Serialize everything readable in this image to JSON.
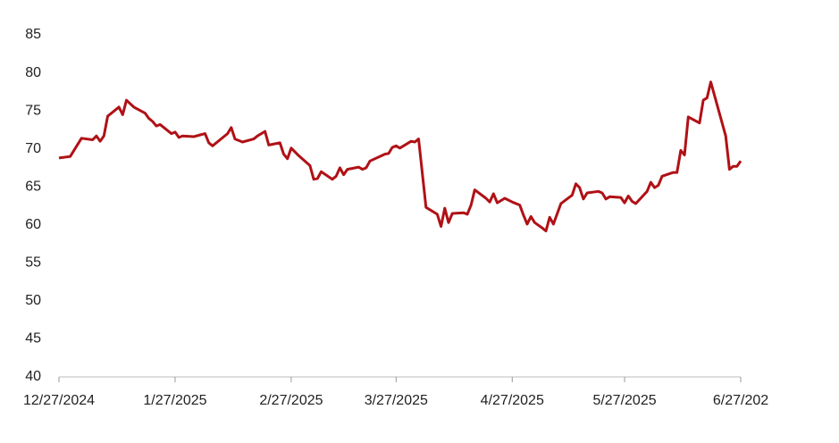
{
  "chart_data": {
    "type": "line",
    "x": [
      "2024-12-27",
      "2024-12-30",
      "2025-01-02",
      "2025-01-05",
      "2025-01-06",
      "2025-01-07",
      "2025-01-08",
      "2025-01-09",
      "2025-01-12",
      "2025-01-13",
      "2025-01-14",
      "2025-01-16",
      "2025-01-19",
      "2025-01-20",
      "2025-01-21",
      "2025-01-22",
      "2025-01-23",
      "2025-01-26",
      "2025-01-27",
      "2025-01-28",
      "2025-01-29",
      "2025-02-01",
      "2025-02-04",
      "2025-02-05",
      "2025-02-06",
      "2025-02-10",
      "2025-02-11",
      "2025-02-12",
      "2025-02-14",
      "2025-02-17",
      "2025-02-18",
      "2025-02-20",
      "2025-02-21",
      "2025-02-24",
      "2025-02-25",
      "2025-02-26",
      "2025-02-27",
      "2025-03-01",
      "2025-03-04",
      "2025-03-05",
      "2025-03-06",
      "2025-03-07",
      "2025-03-10",
      "2025-03-11",
      "2025-03-12",
      "2025-03-13",
      "2025-03-14",
      "2025-03-17",
      "2025-03-18",
      "2025-03-19",
      "2025-03-20",
      "2025-03-24",
      "2025-03-25",
      "2025-03-26",
      "2025-03-27",
      "2025-03-28",
      "2025-03-31",
      "2025-04-01",
      "2025-04-02",
      "2025-04-04",
      "2025-04-07",
      "2025-04-08",
      "2025-04-09",
      "2025-04-10",
      "2025-04-11",
      "2025-04-14",
      "2025-04-15",
      "2025-04-16",
      "2025-04-17",
      "2025-04-20",
      "2025-04-21",
      "2025-04-22",
      "2025-04-23",
      "2025-04-25",
      "2025-04-27",
      "2025-04-29",
      "2025-04-30",
      "2025-05-01",
      "2025-05-02",
      "2025-05-03",
      "2025-05-05",
      "2025-05-06",
      "2025-05-07",
      "2025-05-08",
      "2025-05-10",
      "2025-05-13",
      "2025-05-14",
      "2025-05-15",
      "2025-05-16",
      "2025-05-17",
      "2025-05-20",
      "2025-05-21",
      "2025-05-22",
      "2025-05-23",
      "2025-05-26",
      "2025-05-27",
      "2025-05-28",
      "2025-05-29",
      "2025-05-30",
      "2025-06-02",
      "2025-06-03",
      "2025-06-04",
      "2025-06-05",
      "2025-06-06",
      "2025-06-09",
      "2025-06-10",
      "2025-06-11",
      "2025-06-12",
      "2025-06-13",
      "2025-06-16",
      "2025-06-17",
      "2025-06-18",
      "2025-06-19",
      "2025-06-23",
      "2025-06-24",
      "2025-06-25",
      "2025-06-26",
      "2025-06-27"
    ],
    "series": [
      {
        "color": "#b01116",
        "values": [
          68.8,
          69.0,
          71.4,
          71.2,
          71.7,
          71.0,
          71.7,
          74.3,
          75.5,
          74.5,
          76.4,
          75.5,
          74.7,
          74.0,
          73.6,
          73.0,
          73.2,
          72.0,
          72.2,
          71.5,
          71.7,
          71.6,
          72.0,
          70.8,
          70.4,
          72.0,
          72.8,
          71.3,
          70.9,
          71.3,
          71.7,
          72.3,
          70.5,
          70.8,
          69.3,
          68.7,
          70.1,
          69.1,
          67.8,
          66.0,
          66.1,
          67.0,
          66.0,
          66.4,
          67.5,
          66.6,
          67.3,
          67.6,
          67.3,
          67.5,
          68.4,
          69.3,
          69.4,
          70.2,
          70.4,
          70.1,
          71.0,
          70.9,
          71.3,
          62.3,
          61.4,
          59.8,
          62.2,
          60.3,
          61.5,
          61.6,
          61.4,
          62.6,
          64.6,
          63.5,
          63.0,
          64.1,
          62.9,
          63.5,
          63.0,
          62.6,
          61.3,
          60.1,
          61.1,
          60.3,
          59.6,
          59.2,
          61.0,
          60.1,
          62.8,
          63.9,
          65.4,
          64.9,
          63.4,
          64.2,
          64.4,
          64.2,
          63.4,
          63.7,
          63.6,
          62.9,
          63.8,
          63.1,
          62.8,
          64.4,
          65.6,
          64.9,
          65.2,
          66.4,
          66.9,
          66.9,
          69.8,
          69.2,
          74.2,
          73.4,
          76.4,
          76.7,
          78.8,
          71.7,
          67.3,
          67.7,
          67.7,
          68.4
        ]
      }
    ],
    "xlim": [
      "2024-12-27",
      "2025-06-27"
    ],
    "xticks": [
      {
        "value": "2024-12-27",
        "label": "12/27/2024"
      },
      {
        "value": "2025-01-27",
        "label": "1/27/2025"
      },
      {
        "value": "2025-02-27",
        "label": "2/27/2025"
      },
      {
        "value": "2025-03-27",
        "label": "3/27/2025"
      },
      {
        "value": "2025-04-27",
        "label": "4/27/2025"
      },
      {
        "value": "2025-05-27",
        "label": "5/27/2025"
      },
      {
        "value": "2025-06-27",
        "label": "6/27/202"
      }
    ],
    "ylim": [
      40,
      85
    ],
    "yticks": [
      40,
      45,
      50,
      55,
      60,
      65,
      70,
      75,
      80,
      85
    ],
    "grid": false
  }
}
